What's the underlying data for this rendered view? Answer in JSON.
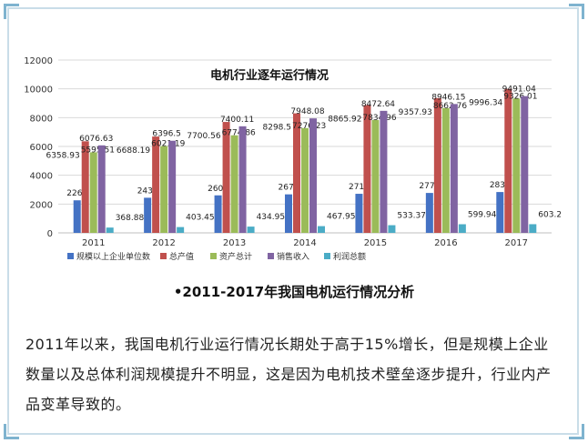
{
  "caption": "•2011-2017年我国电机运行情况分析",
  "paragraph": "2011年以来，我国电机行业运行情况长期处于高于15%增长，但是规模上企业数量以及总体利润规模提升不明显，这是因为电机技术壁垒逐步提升，行业内产品变革导致的。",
  "chart_data": {
    "type": "bar",
    "title": "电机行业逐年运行情况",
    "categories": [
      "2011",
      "2012",
      "2013",
      "2014",
      "2015",
      "2016",
      "2017"
    ],
    "ylim": [
      0,
      12000
    ],
    "yticks": [
      0,
      2000,
      4000,
      6000,
      8000,
      10000,
      12000
    ],
    "grid": true,
    "legend_position": "bottom",
    "series": [
      {
        "name": "规模以上企业单位数",
        "color": "#4472c4",
        "values": [
          2260,
          2439,
          2605,
          2674,
          2713,
          2772,
          2836
        ],
        "labels": [
          "2260",
          "2439",
          "2605",
          "2674",
          "2713",
          "2772",
          "2836"
        ]
      },
      {
        "name": "总产值",
        "color": "#c0504d",
        "values": [
          6358.93,
          6688.19,
          7700.56,
          8298.5,
          8865.92,
          9357.93,
          9996.34
        ],
        "labels": [
          "6358.93",
          "6688.19",
          "7700.56",
          "8298.5",
          "8865.92",
          "9357.93",
          "9996.34"
        ]
      },
      {
        "name": "资产总计",
        "color": "#9bbb59",
        "values": [
          5595.51,
          6021.19,
          6774.86,
          7276.23,
          7834.96,
          8662.76,
          9326.01
        ],
        "labels": [
          "5595.51",
          "6021.19",
          "6774.86",
          "7276.23",
          "7834.96",
          "8662.76",
          "9326.01"
        ]
      },
      {
        "name": "销售收入",
        "color": "#8064a2",
        "values": [
          6076.63,
          6396.5,
          7400.11,
          7948.08,
          8472.64,
          8946.15,
          9491.04
        ],
        "labels": [
          "6076.63",
          "6396.5",
          "7400.11",
          "7948.08",
          "8472.64",
          "8946.15",
          "9491.04"
        ]
      },
      {
        "name": "利润总额",
        "color": "#4bacc6",
        "values": [
          368.88,
          403.45,
          434.95,
          467.95,
          533.37,
          599.94,
          603.24
        ],
        "labels": [
          "368.88",
          "403.45",
          "434.95",
          "467.95",
          "533.37",
          "599.94",
          "603.24"
        ]
      }
    ]
  }
}
